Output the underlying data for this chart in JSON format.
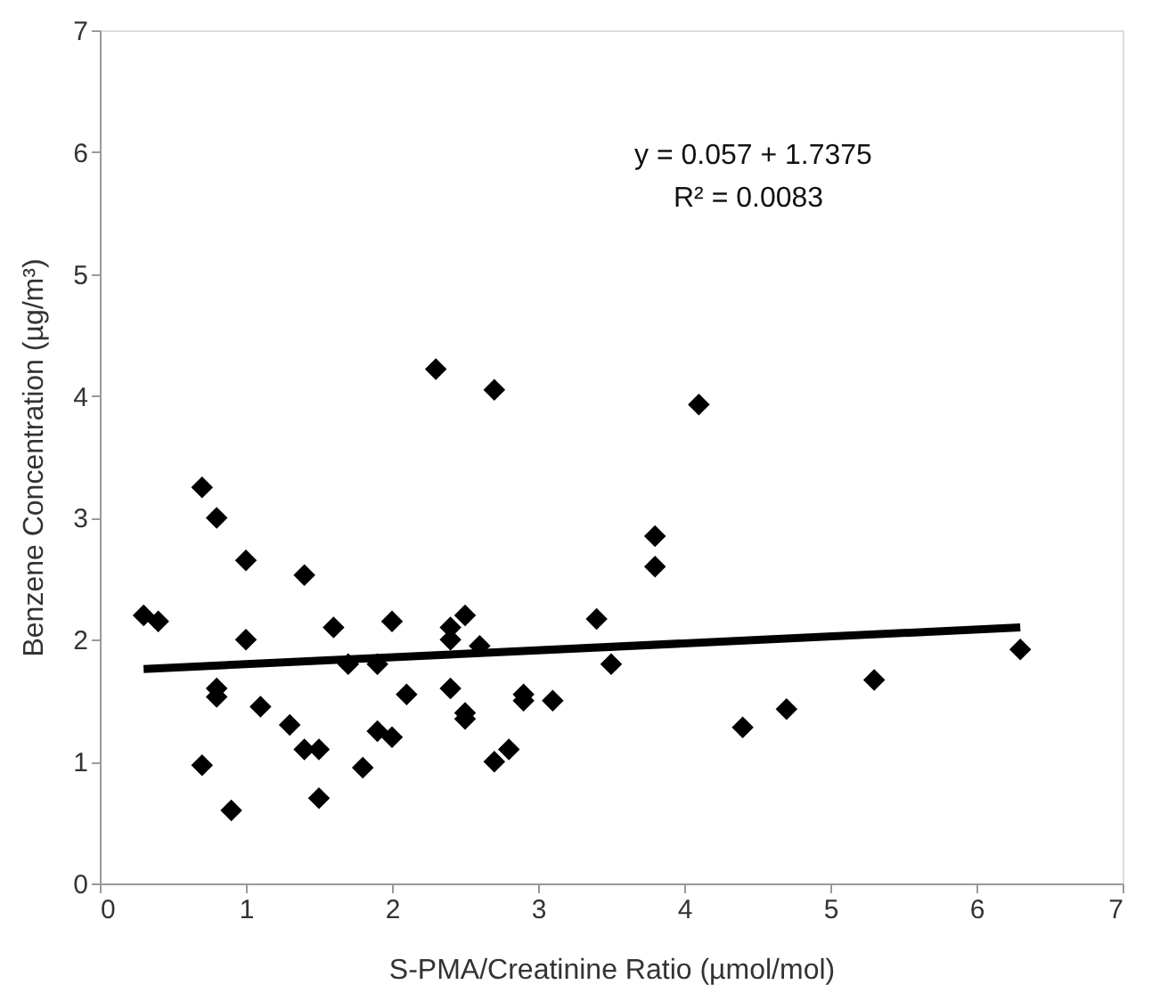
{
  "chart_data": {
    "type": "scatter",
    "xlabel": "S-PMA/Creatinine Ratio (µmol/mol)",
    "ylabel": "Benzene Concentration (µg/m³)",
    "xlim": [
      0,
      7
    ],
    "ylim": [
      0,
      7
    ],
    "xticks": [
      0,
      1,
      2,
      3,
      4,
      5,
      6,
      7
    ],
    "yticks": [
      0,
      1,
      2,
      3,
      4,
      5,
      6,
      7
    ],
    "grid": false,
    "annotations": [
      "y = 0.057 + 1.7375",
      "R² = 0.0083"
    ],
    "series": [
      {
        "color": "#000000",
        "marker": "diamond",
        "x": [
          0.3,
          0.4,
          0.7,
          0.8,
          0.7,
          0.8,
          0.8,
          0.9,
          1.0,
          1.0,
          1.1,
          1.3,
          1.4,
          1.4,
          1.5,
          1.5,
          1.6,
          1.7,
          1.8,
          1.9,
          1.9,
          2.0,
          2.0,
          2.1,
          2.3,
          2.4,
          2.4,
          2.4,
          2.5,
          2.5,
          2.5,
          2.6,
          2.7,
          2.7,
          2.8,
          2.9,
          2.9,
          3.1,
          3.4,
          3.5,
          3.8,
          3.8,
          4.1,
          4.4,
          4.7,
          5.3,
          6.3
        ],
        "values": [
          2.2,
          2.15,
          3.25,
          3.0,
          0.97,
          1.6,
          1.53,
          0.6,
          2.65,
          2.0,
          1.45,
          1.3,
          2.53,
          1.1,
          1.1,
          0.7,
          2.1,
          1.8,
          0.95,
          1.8,
          1.25,
          2.15,
          1.2,
          1.55,
          4.22,
          2.0,
          2.1,
          1.6,
          2.2,
          1.4,
          1.35,
          1.95,
          4.05,
          1.0,
          1.1,
          1.5,
          1.55,
          1.5,
          2.17,
          1.8,
          2.85,
          2.6,
          3.93,
          1.28,
          1.43,
          1.67,
          1.92
        ]
      },
      {
        "type": "line",
        "color": "#000000",
        "line_style": "solid",
        "marker": "none",
        "x": [
          0.3,
          6.3
        ],
        "values": [
          1.76,
          2.1
        ]
      }
    ]
  }
}
